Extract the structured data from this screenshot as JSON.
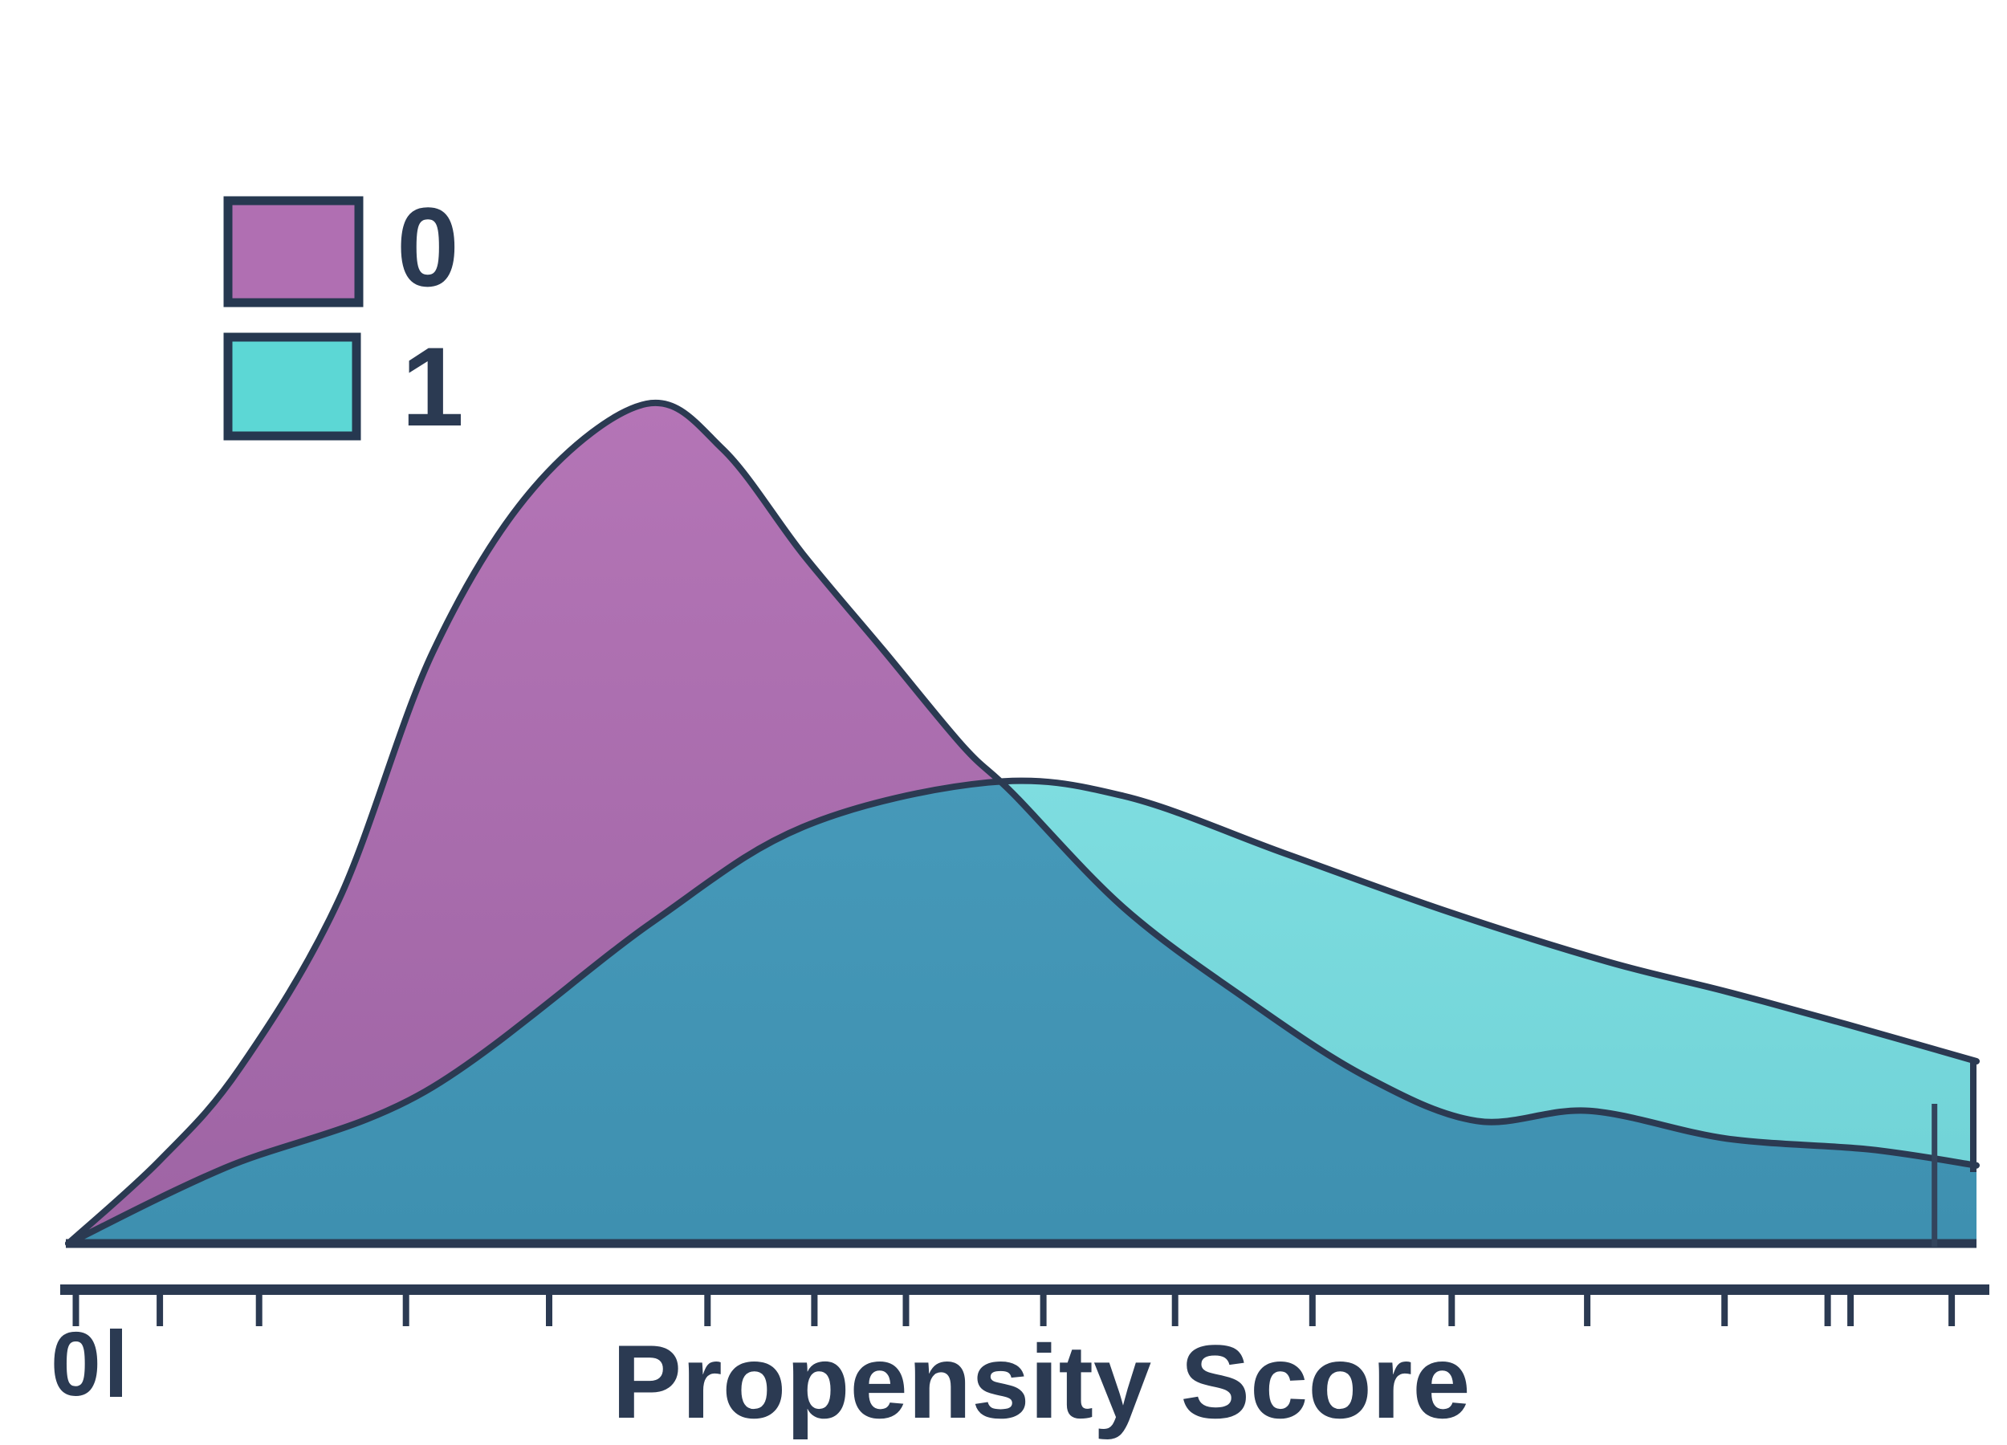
{
  "figure": {
    "background": "#ffffff"
  },
  "colors": {
    "outline": "#2b3a52",
    "text": "#2b3a52",
    "series0_fill_top": "#b475b6",
    "series0_fill_bottom": "#9e64a4",
    "series1_fill_top": "#7edde0",
    "series1_fill_bottom": "#6fd2d6",
    "overlap_fill_top": "#4699b9",
    "overlap_fill_bottom": "#3e90b0",
    "legend0_fill": "#b06fb2",
    "legend1_fill": "#5cd7d5"
  },
  "legend": {
    "items": [
      {
        "label": "0",
        "color": "#b06fb2"
      },
      {
        "label": "1",
        "color": "#5cd7d5"
      }
    ]
  },
  "axis": {
    "label": "Propensity Score",
    "left_tick_label": "0",
    "tick_positions": [
      0.004,
      0.048,
      0.1,
      0.177,
      0.252,
      0.335,
      0.391,
      0.439,
      0.511,
      0.58,
      0.652,
      0.725,
      0.796,
      0.868,
      0.922,
      0.934,
      0.987
    ]
  },
  "chart_data": {
    "type": "area",
    "subtype": "kde-density-overlay",
    "title": "",
    "xlabel": "Propensity Score",
    "ylabel": "",
    "xlim": [
      0,
      1
    ],
    "grid": false,
    "legend_position": "upper-left",
    "legend_entries": [
      "0",
      "1"
    ],
    "series": [
      {
        "name": "0",
        "color": "#a76cab",
        "x": [
          0.0,
          0.048,
          0.09,
          0.142,
          0.191,
          0.244,
          0.303,
          0.343,
          0.385,
          0.427,
          0.469,
          0.495,
          0.553,
          0.616,
          0.679,
          0.738,
          0.797,
          0.869,
          0.944,
          1.0
        ],
        "density": [
          0.0,
          0.099,
          0.209,
          0.41,
          0.704,
          0.9,
          1.0,
          0.946,
          0.821,
          0.707,
          0.592,
          0.536,
          0.4,
          0.293,
          0.2,
          0.146,
          0.158,
          0.125,
          0.112,
          0.093
        ]
      },
      {
        "name": "1",
        "color": "#77d8da",
        "x": [
          0.0,
          0.082,
          0.187,
          0.305,
          0.385,
          0.482,
          0.553,
          0.637,
          0.722,
          0.806,
          0.869,
          0.932,
          1.0
        ],
        "density": [
          0.0,
          0.09,
          0.181,
          0.381,
          0.496,
          0.549,
          0.533,
          0.465,
          0.396,
          0.336,
          0.3,
          0.261,
          0.217
        ]
      }
    ],
    "overlap_color": "#4295b5",
    "rug_marks_x": [
      0.978
    ]
  }
}
